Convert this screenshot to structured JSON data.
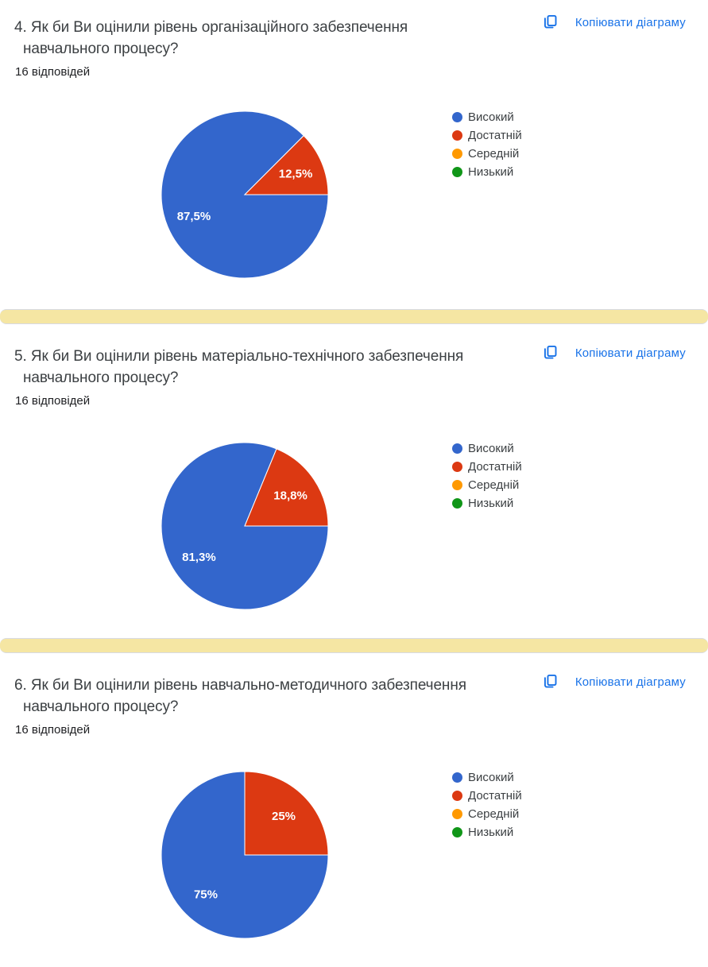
{
  "theme": {
    "accent": "#1a73e8",
    "divider_band": "#f5e6a3",
    "title_color": "#3c4043"
  },
  "sections": [
    {
      "question_line1": "4. Як би Ви оцінили рівень організаційного забезпечення",
      "question_line2": "навчального процесу?",
      "responses_label": "16 відповідей",
      "copy_button_label": "Копіювати діаграму"
    },
    {
      "question_line1": "5. Як би Ви оцінили рівень матеріально-технічного забезпечення",
      "question_line2": "навчального процесу?",
      "responses_label": "16 відповідей",
      "copy_button_label": "Копіювати діаграму"
    },
    {
      "question_line1": "6. Як би Ви оцінили рівень навчально-методичного забезпечення",
      "question_line2": "навчального процесу?",
      "responses_label": "16 відповідей",
      "copy_button_label": "Копіювати діаграму"
    }
  ],
  "chart_data": [
    {
      "type": "pie",
      "title": "4. Як би Ви оцінили рівень організаційного забезпечення навчального процесу?",
      "subtitle": "16 відповідей",
      "labels": [
        "Високий",
        "Достатній",
        "Середній",
        "Низький"
      ],
      "values": [
        87.5,
        12.5,
        0,
        0
      ],
      "slice_labels": [
        "87,5%",
        "12,5%",
        "",
        ""
      ],
      "colors": [
        "#3366cc",
        "#dc3912",
        "#ff9900",
        "#109618"
      ],
      "legend_position": "right",
      "start_angle_deg": 90,
      "direction": "clockwise"
    },
    {
      "type": "pie",
      "title": "5. Як би Ви оцінили рівень матеріально-технічного забезпечення навчального процесу?",
      "subtitle": "16 відповідей",
      "labels": [
        "Високий",
        "Достатній",
        "Середній",
        "Низький"
      ],
      "values": [
        81.3,
        18.8,
        0,
        0
      ],
      "slice_labels": [
        "81,3%",
        "18,8%",
        "",
        ""
      ],
      "colors": [
        "#3366cc",
        "#dc3912",
        "#ff9900",
        "#109618"
      ],
      "legend_position": "right",
      "start_angle_deg": 90,
      "direction": "clockwise"
    },
    {
      "type": "pie",
      "title": "6. Як би Ви оцінили рівень навчально-методичного забезпечення навчального процесу?",
      "subtitle": "16 відповідей",
      "labels": [
        "Високий",
        "Достатній",
        "Середній",
        "Низький"
      ],
      "values": [
        75,
        25,
        0,
        0
      ],
      "slice_labels": [
        "75%",
        "25%",
        "",
        ""
      ],
      "colors": [
        "#3366cc",
        "#dc3912",
        "#ff9900",
        "#109618"
      ],
      "legend_position": "right",
      "start_angle_deg": 90,
      "direction": "clockwise"
    }
  ]
}
